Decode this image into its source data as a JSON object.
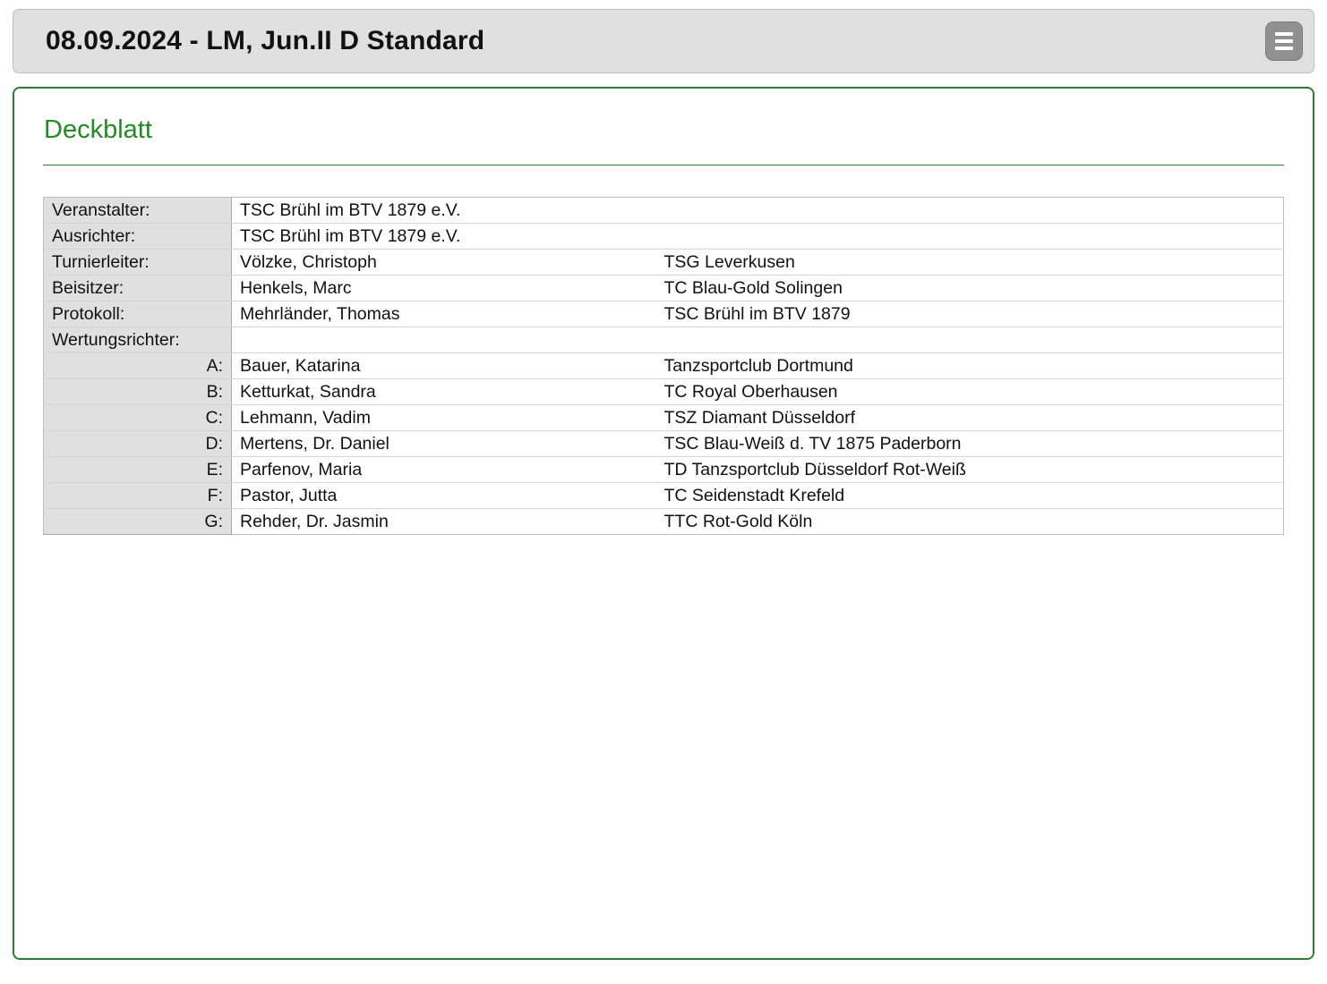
{
  "header": {
    "title": "08.09.2024 - LM, Jun.II D Standard",
    "menu_icon": "hamburger-icon"
  },
  "page": {
    "heading": "Deckblatt"
  },
  "colors": {
    "accent_green": "#228b22",
    "panel_border_green": "#2e7d32",
    "header_bg": "#e0e0e0",
    "label_cell_bg": "#e0e0e0"
  },
  "officials": {
    "rows": [
      {
        "label": "Veranstalter:",
        "value": "TSC Brühl im BTV 1879 e.V."
      },
      {
        "label": "Ausrichter:",
        "value": "TSC Brühl im BTV 1879 e.V."
      },
      {
        "label": "Turnierleiter:",
        "name": "Völzke, Christoph",
        "club": "TSG Leverkusen"
      },
      {
        "label": "Beisitzer:",
        "name": "Henkels, Marc",
        "club": "TC Blau-Gold Solingen"
      },
      {
        "label": "Protokoll:",
        "name": "Mehrländer, Thomas",
        "club": "TSC Brühl im BTV 1879"
      }
    ],
    "judges_label": "Wertungsrichter:",
    "judges": [
      {
        "letter": "A:",
        "name": "Bauer, Katarina",
        "club": "Tanzsportclub Dortmund"
      },
      {
        "letter": "B:",
        "name": "Ketturkat, Sandra",
        "club": "TC Royal Oberhausen"
      },
      {
        "letter": "C:",
        "name": "Lehmann, Vadim",
        "club": "TSZ Diamant Düsseldorf"
      },
      {
        "letter": "D:",
        "name": "Mertens, Dr. Daniel",
        "club": "TSC Blau-Weiß d. TV 1875 Paderborn"
      },
      {
        "letter": "E:",
        "name": "Parfenov, Maria",
        "club": "TD Tanzsportclub Düsseldorf Rot-Weiß"
      },
      {
        "letter": "F:",
        "name": "Pastor, Jutta",
        "club": "TC Seidenstadt Krefeld"
      },
      {
        "letter": "G:",
        "name": "Rehder, Dr. Jasmin",
        "club": "TTC Rot-Gold Köln"
      }
    ]
  }
}
